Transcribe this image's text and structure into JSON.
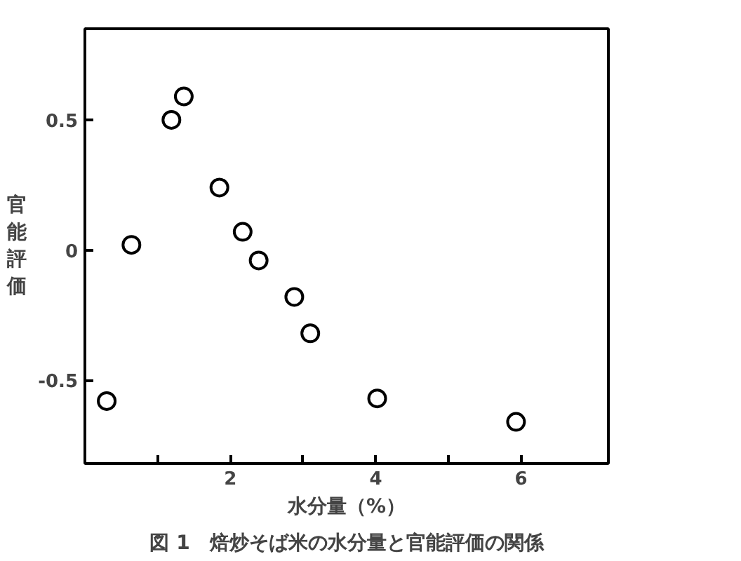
{
  "chart_data": {
    "type": "scatter",
    "title": "図 1　焙炒そば米の水分量と官能評価の関係",
    "xlabel": "水分量（%）",
    "ylabel": "官能評価",
    "x": [
      0.3,
      0.64,
      1.19,
      1.36,
      1.85,
      2.17,
      2.39,
      2.88,
      3.1,
      4.02,
      5.93
    ],
    "values": [
      -0.58,
      0.02,
      0.5,
      0.59,
      0.24,
      0.07,
      -0.04,
      -0.18,
      -0.32,
      -0.57,
      -0.66
    ],
    "color": "#000000",
    "marker": "circle",
    "grid": false,
    "xlim": [
      0,
      7.2
    ],
    "ylim": [
      -0.82,
      0.85
    ],
    "xticks": [
      {
        "value": 1,
        "label": null
      },
      2,
      {
        "value": 3,
        "label": null
      },
      4,
      {
        "value": 5,
        "label": null
      },
      6
    ],
    "yticks": [
      -0.5,
      0,
      0.5
    ]
  }
}
